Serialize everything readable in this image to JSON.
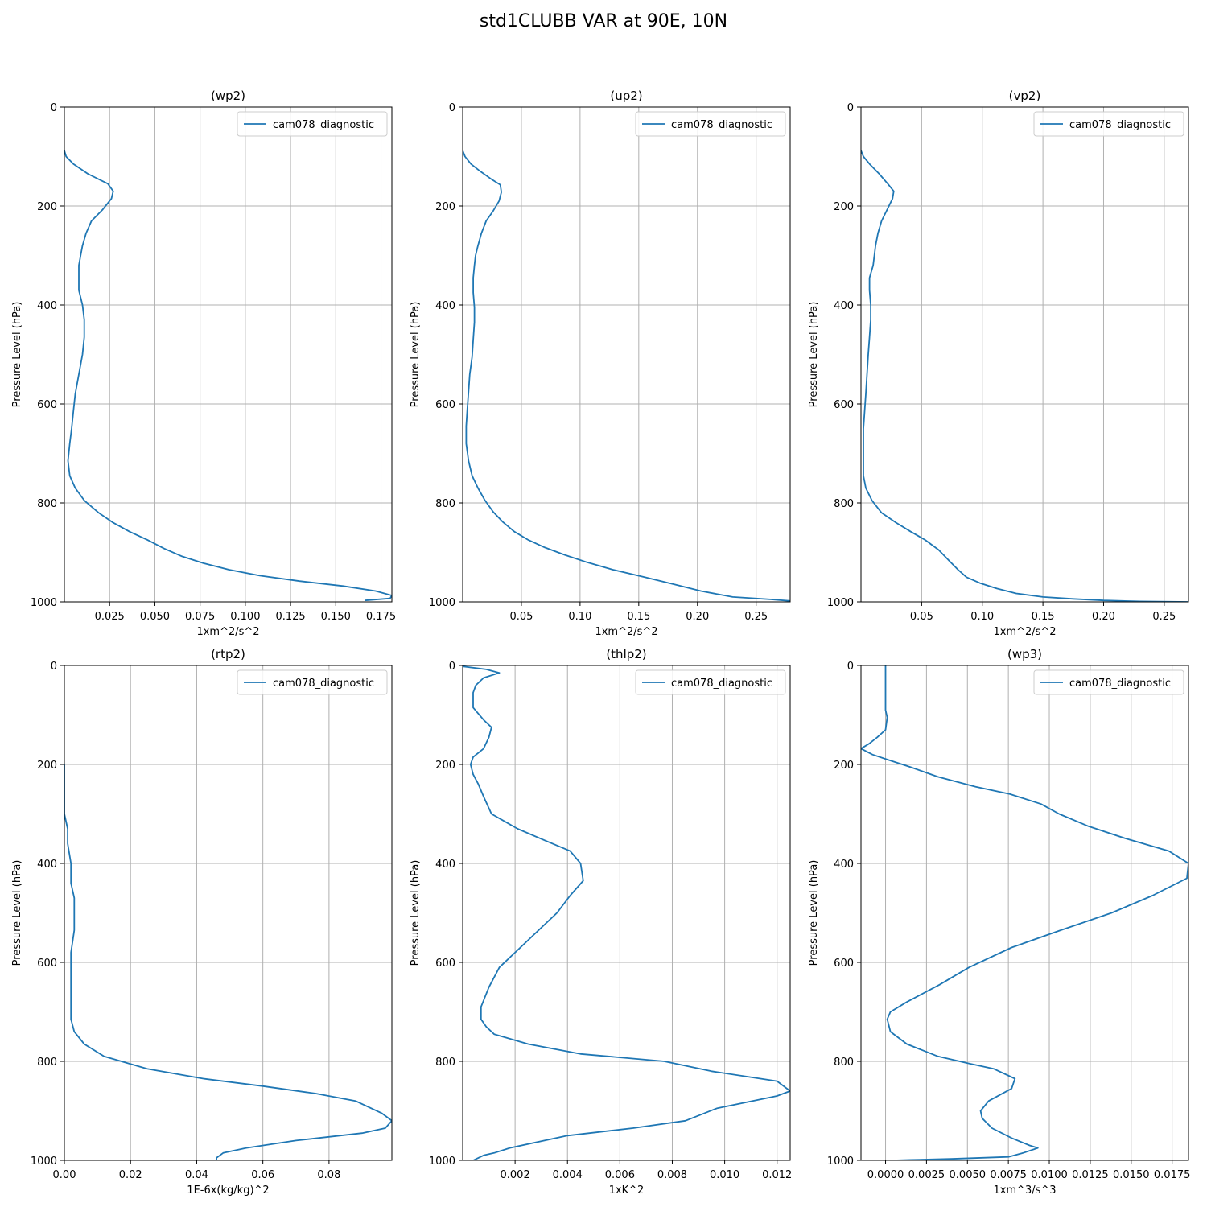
{
  "title": "std1CLUBB VAR at 90E, 10N",
  "colors": {
    "line": "#1f77b4",
    "grid": "#b0b0b0"
  },
  "chart_data": [
    {
      "type": "line",
      "title": "(wp2)",
      "xlabel": "1xm^2/s^2",
      "ylabel": "Pressure Level (hPa)",
      "xlim": [
        0.0,
        0.181
      ],
      "ylim": [
        1000,
        0
      ],
      "yinverted": true,
      "xticks": [
        0.025,
        0.05,
        0.075,
        0.1,
        0.125,
        0.15,
        0.175
      ],
      "xtick_labels": [
        "0.025",
        "0.050",
        "0.075",
        "0.100",
        "0.125",
        "0.150",
        "0.175"
      ],
      "yticks": [
        0,
        200,
        400,
        600,
        800,
        1000
      ],
      "legend": "upper right",
      "grid": true,
      "series": [
        {
          "name": "cam078_diagnostic",
          "x": [
            0.0,
            0.001,
            0.005,
            0.013,
            0.024,
            0.027,
            0.026,
            0.021,
            0.015,
            0.012,
            0.01,
            0.009,
            0.008,
            0.008,
            0.008,
            0.01,
            0.011,
            0.011,
            0.01,
            0.008,
            0.006,
            0.005,
            0.004,
            0.003,
            0.002,
            0.003,
            0.006,
            0.011,
            0.019,
            0.027,
            0.036,
            0.046,
            0.055,
            0.065,
            0.077,
            0.091,
            0.108,
            0.13,
            0.154,
            0.172,
            0.181,
            0.18,
            0.166
          ],
          "y": [
            88,
            100,
            115,
            135,
            155,
            170,
            185,
            208,
            230,
            255,
            280,
            300,
            320,
            345,
            370,
            400,
            430,
            465,
            500,
            540,
            580,
            615,
            650,
            680,
            715,
            745,
            770,
            795,
            820,
            840,
            858,
            875,
            892,
            908,
            922,
            935,
            947,
            958,
            968,
            978,
            987,
            993,
            997
          ]
        }
      ]
    },
    {
      "type": "line",
      "title": "(up2)",
      "xlabel": "1xm^2/s^2",
      "ylabel": "Pressure Level (hPa)",
      "xlim": [
        0.0,
        0.279
      ],
      "ylim": [
        1000,
        0
      ],
      "yinverted": true,
      "xticks": [
        0.05,
        0.1,
        0.15,
        0.2,
        0.25
      ],
      "xtick_labels": [
        "0.05",
        "0.10",
        "0.15",
        "0.20",
        "0.25"
      ],
      "yticks": [
        0,
        200,
        400,
        600,
        800,
        1000
      ],
      "legend": "upper right",
      "grid": true,
      "series": [
        {
          "name": "cam078_diagnostic",
          "x": [
            0.0,
            0.002,
            0.007,
            0.015,
            0.024,
            0.032,
            0.033,
            0.031,
            0.026,
            0.02,
            0.016,
            0.013,
            0.011,
            0.01,
            0.009,
            0.009,
            0.01,
            0.01,
            0.009,
            0.008,
            0.006,
            0.005,
            0.004,
            0.003,
            0.003,
            0.005,
            0.008,
            0.013,
            0.019,
            0.026,
            0.034,
            0.044,
            0.056,
            0.07,
            0.087,
            0.106,
            0.128,
            0.155,
            0.181,
            0.203,
            0.23,
            0.262,
            0.279
          ],
          "y": [
            88,
            100,
            115,
            130,
            145,
            157,
            172,
            190,
            210,
            230,
            255,
            280,
            300,
            320,
            345,
            375,
            405,
            435,
            470,
            505,
            540,
            575,
            610,
            645,
            680,
            715,
            745,
            770,
            795,
            818,
            838,
            858,
            875,
            890,
            905,
            920,
            935,
            950,
            965,
            978,
            990,
            995,
            998
          ]
        }
      ]
    },
    {
      "type": "line",
      "title": "(vp2)",
      "xlabel": "1xm^2/s^2",
      "ylabel": "Pressure Level (hPa)",
      "xlim": [
        0.0,
        0.27
      ],
      "ylim": [
        1000,
        0
      ],
      "yinverted": true,
      "xticks": [
        0.05,
        0.1,
        0.15,
        0.2,
        0.25
      ],
      "xtick_labels": [
        "0.05",
        "0.10",
        "0.15",
        "0.20",
        "0.25"
      ],
      "yticks": [
        0,
        200,
        400,
        600,
        800,
        1000
      ],
      "legend": "upper right",
      "grid": true,
      "series": [
        {
          "name": "cam078_diagnostic",
          "x": [
            0.0,
            0.002,
            0.007,
            0.015,
            0.022,
            0.027,
            0.026,
            0.022,
            0.017,
            0.014,
            0.012,
            0.011,
            0.01,
            0.007,
            0.007,
            0.008,
            0.008,
            0.007,
            0.006,
            0.005,
            0.004,
            0.003,
            0.002,
            0.002,
            0.002,
            0.002,
            0.004,
            0.009,
            0.017,
            0.029,
            0.041,
            0.053,
            0.064,
            0.072,
            0.08,
            0.087,
            0.098,
            0.112,
            0.128,
            0.15,
            0.175,
            0.2,
            0.23,
            0.27
          ],
          "y": [
            88,
            100,
            115,
            135,
            155,
            170,
            185,
            205,
            230,
            255,
            280,
            300,
            320,
            345,
            370,
            400,
            430,
            465,
            500,
            540,
            580,
            615,
            650,
            680,
            715,
            745,
            770,
            795,
            820,
            840,
            858,
            875,
            895,
            915,
            935,
            950,
            962,
            973,
            983,
            990,
            994,
            997,
            999,
            1000
          ]
        }
      ]
    },
    {
      "type": "line",
      "title": "(rtp2)",
      "xlabel": "1E-6x(kg/kg)^2",
      "ylabel": "Pressure Level (hPa)",
      "xlim": [
        0.0,
        0.099
      ],
      "ylim": [
        1000,
        0
      ],
      "yinverted": true,
      "xticks": [
        0.0,
        0.02,
        0.04,
        0.06,
        0.08
      ],
      "xtick_labels": [
        "0.00",
        "0.02",
        "0.04",
        "0.06",
        "0.08"
      ],
      "yticks": [
        0,
        200,
        400,
        600,
        800,
        1000
      ],
      "legend": "upper right",
      "grid": true,
      "series": [
        {
          "name": "cam078_diagnostic",
          "x": [
            0.0,
            0.0,
            0.0,
            0.001,
            0.001,
            0.002,
            0.002,
            0.003,
            0.003,
            0.003,
            0.002,
            0.002,
            0.002,
            0.002,
            0.002,
            0.002,
            0.003,
            0.006,
            0.012,
            0.025,
            0.042,
            0.06,
            0.076,
            0.088,
            0.096,
            0.099,
            0.097,
            0.09,
            0.07,
            0.055,
            0.048,
            0.046,
            0.046
          ],
          "y": [
            200,
            270,
            300,
            330,
            360,
            400,
            440,
            470,
            505,
            535,
            580,
            610,
            640,
            670,
            700,
            715,
            740,
            765,
            790,
            815,
            835,
            850,
            865,
            880,
            905,
            920,
            935,
            945,
            960,
            975,
            985,
            995,
            1000
          ]
        }
      ]
    },
    {
      "type": "line",
      "title": "(thlp2)",
      "xlabel": "1xK^2",
      "ylabel": "Pressure Level (hPa)",
      "xlim": [
        0.0,
        0.0125
      ],
      "ylim": [
        1000,
        0
      ],
      "yinverted": true,
      "xticks": [
        0.002,
        0.004,
        0.006,
        0.008,
        0.01,
        0.012
      ],
      "xtick_labels": [
        "0.002",
        "0.004",
        "0.006",
        "0.008",
        "0.010",
        "0.012"
      ],
      "yticks": [
        0,
        200,
        400,
        600,
        800,
        1000
      ],
      "legend": "upper right",
      "grid": true,
      "series": [
        {
          "name": "cam078_diagnostic",
          "x": [
            0.0,
            0.0009,
            0.0014,
            0.0008,
            0.0005,
            0.0004,
            0.0004,
            0.0008,
            0.0011,
            0.001,
            0.0008,
            0.0004,
            0.0003,
            0.0004,
            0.0006,
            0.0008,
            0.0011,
            0.0021,
            0.0032,
            0.0041,
            0.0045,
            0.0046,
            0.0041,
            0.0036,
            0.0029,
            0.0021,
            0.0014,
            0.001,
            0.0007,
            0.0007,
            0.0009,
            0.0012,
            0.0025,
            0.0045,
            0.0077,
            0.0095,
            0.012,
            0.0125,
            0.012,
            0.0097,
            0.0085,
            0.0065,
            0.004,
            0.0018,
            0.0012,
            0.0008,
            0.0006,
            0.0004,
            0.0003
          ],
          "y": [
            2,
            8,
            15,
            25,
            40,
            55,
            85,
            110,
            125,
            145,
            168,
            185,
            200,
            220,
            240,
            265,
            300,
            330,
            355,
            375,
            400,
            435,
            465,
            500,
            535,
            575,
            610,
            650,
            690,
            715,
            730,
            745,
            765,
            785,
            800,
            820,
            840,
            860,
            870,
            895,
            920,
            935,
            950,
            975,
            985,
            990,
            995,
            1000,
            1000
          ]
        }
      ]
    },
    {
      "type": "line",
      "title": "(wp3)",
      "xlabel": "1xm^3/s^3",
      "ylabel": "Pressure Level (hPa)",
      "xlim": [
        -0.0015,
        0.0185
      ],
      "ylim": [
        1000,
        0
      ],
      "yinverted": true,
      "xticks": [
        0.0,
        0.0025,
        0.005,
        0.0075,
        0.01,
        0.0125,
        0.015,
        0.0175
      ],
      "xtick_labels": [
        "0.0000",
        "0.0025",
        "0.0050",
        "0.0075",
        "0.0100",
        "0.0125",
        "0.0150",
        "0.0175"
      ],
      "yticks": [
        0,
        200,
        400,
        600,
        800,
        1000
      ],
      "legend": "upper right",
      "grid": true,
      "series": [
        {
          "name": "cam078_diagnostic",
          "x": [
            0.0,
            0.0,
            0.0001,
            0.0,
            -0.0005,
            -0.001,
            -0.0015,
            -0.0008,
            0.0001,
            0.0015,
            0.0032,
            0.0055,
            0.0076,
            0.0095,
            0.0106,
            0.0124,
            0.0147,
            0.0173,
            0.0185,
            0.0184,
            0.0163,
            0.0138,
            0.0107,
            0.0077,
            0.0051,
            0.0033,
            0.0013,
            0.0003,
            0.0001,
            0.0003,
            0.0013,
            0.0032,
            0.0052,
            0.0066,
            0.0079,
            0.0077,
            0.0063,
            0.0058,
            0.0059,
            0.0065,
            0.0077,
            0.0088,
            0.0093,
            0.0084,
            0.0075,
            0.004,
            0.0015,
            0.0005
          ],
          "y": [
            0,
            90,
            105,
            130,
            145,
            158,
            168,
            180,
            190,
            205,
            225,
            245,
            260,
            280,
            300,
            325,
            350,
            375,
            400,
            430,
            465,
            500,
            535,
            570,
            610,
            645,
            680,
            700,
            715,
            740,
            765,
            790,
            805,
            815,
            835,
            855,
            880,
            900,
            915,
            935,
            955,
            970,
            975,
            985,
            993,
            997,
            999,
            1000
          ]
        }
      ]
    }
  ]
}
